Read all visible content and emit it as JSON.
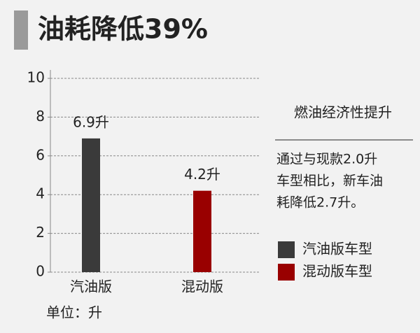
{
  "chart_data": {
    "type": "bar",
    "title": "油耗降低39%",
    "categories": [
      "汽油版",
      "混动版"
    ],
    "series": [
      {
        "name": "汽油版车型",
        "color": "#3a3a3a",
        "values": [
          6.9,
          null
        ],
        "value_labels": [
          "6.9升",
          null
        ]
      },
      {
        "name": "混动版车型",
        "color": "#990000",
        "values": [
          null,
          4.2
        ],
        "value_labels": [
          null,
          "4.2升"
        ]
      }
    ],
    "ylim": [
      0,
      10
    ],
    "yticks": [
      0,
      2,
      4,
      6,
      8,
      10
    ],
    "grid": true,
    "side_title": "燃油经济性提升",
    "side_note": [
      "通过与现款2.0升",
      "车型相比，新车油",
      "耗降低2.7升。"
    ],
    "unit_note": "单位：升"
  }
}
